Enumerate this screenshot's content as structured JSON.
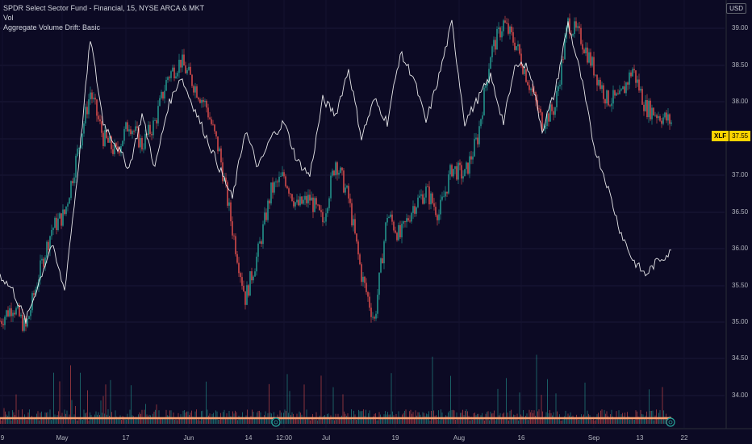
{
  "legend": {
    "title": "SPDR Select Sector Fund - Financial, 15, NYSE ARCA & MKT",
    "indicator1": "Vol",
    "indicator2": "Aggregate Volume Drift: Basic"
  },
  "currency": "USD",
  "price_tag": {
    "symbol": "XLF",
    "value": "37.55"
  },
  "colors": {
    "background": "#0c0a24",
    "up": "#26a69a",
    "down": "#ef5350",
    "drift_line": "#ffffff",
    "baseline": "#f7a072"
  },
  "chart_data": {
    "type": "line",
    "ylim": [
      33.6,
      39.2
    ],
    "y_ticks": [
      "39.00",
      "38.50",
      "38.00",
      "37.50",
      "37.00",
      "36.50",
      "36.00",
      "35.50",
      "35.00",
      "34.50",
      "34.00"
    ],
    "x_ticks": [
      "9",
      "May",
      "17",
      "Jun",
      "14",
      "12:00",
      "Jul",
      "19",
      "Aug",
      "16",
      "Sep",
      "13",
      "22"
    ],
    "series": [
      {
        "name": "",
        "values": [
          35.0,
          35.2,
          34.9,
          35.6,
          36.2,
          36.4,
          37.2,
          38.0,
          37.4,
          37.2,
          37.6,
          37.3,
          37.6,
          38.2,
          38.4,
          38.1,
          37.8,
          37.2,
          36.2,
          35.3,
          35.9,
          36.7,
          36.9,
          36.5,
          36.6,
          36.3,
          37.1,
          36.6,
          35.6,
          35.0,
          36.4,
          36.1,
          36.5,
          36.7,
          36.4,
          37.0,
          36.9,
          37.4,
          38.5,
          38.9,
          38.6,
          38.1,
          37.6,
          37.8,
          38.9,
          38.7,
          38.3,
          37.9,
          37.9,
          38.3,
          37.8,
          37.7,
          37.6
        ]
      },
      {
        "name": "",
        "values": [
          35.6,
          35.4,
          35.0,
          35.5,
          36.0,
          35.4,
          36.9,
          38.7,
          37.6,
          37.3,
          37.0,
          37.7,
          37.0,
          37.8,
          38.2,
          37.8,
          37.4,
          37.0,
          36.6,
          37.5,
          37.0,
          37.4,
          37.6,
          37.1,
          36.9,
          37.9,
          37.7,
          38.3,
          37.4,
          37.9,
          37.6,
          38.5,
          38.2,
          37.6,
          38.2,
          38.9,
          37.6,
          37.9,
          38.2,
          37.6,
          38.4,
          38.3,
          37.5,
          38.0,
          38.9,
          38.2,
          37.3,
          36.8,
          36.2,
          35.8,
          35.6,
          35.8,
          35.9
        ]
      }
    ]
  }
}
